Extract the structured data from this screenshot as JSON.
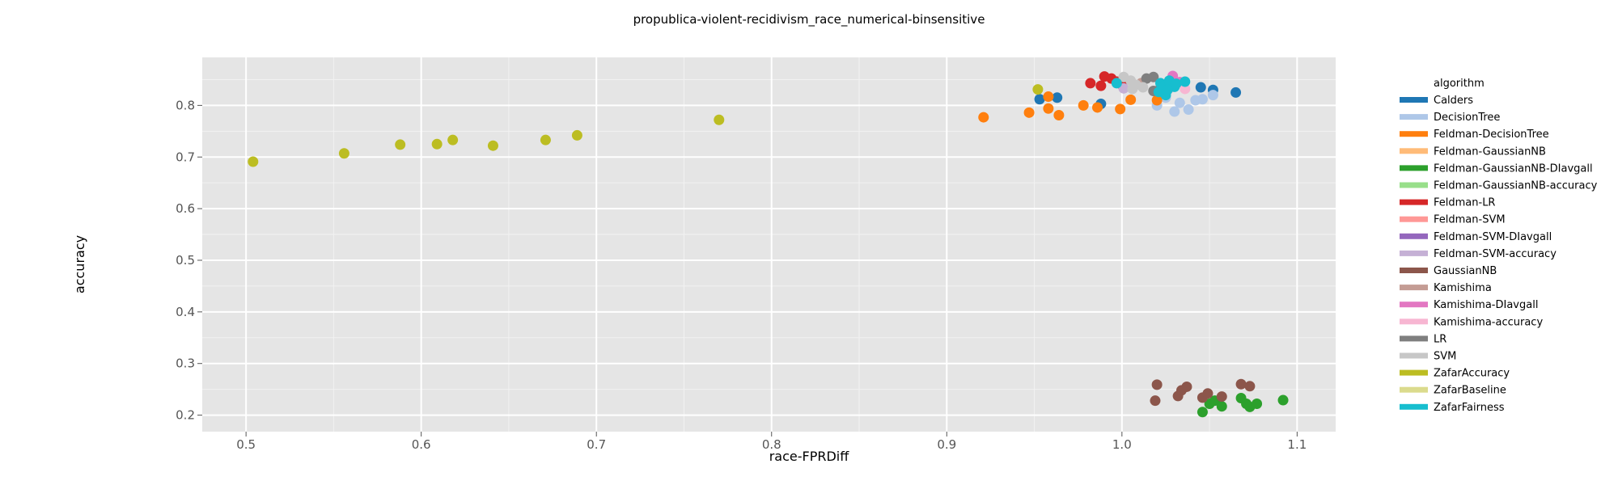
{
  "chart_data": {
    "type": "scatter",
    "title": "propublica-violent-recidivism_race_numerical-binsensitive",
    "xlabel": "race-FPRDiff",
    "ylabel": "accuracy",
    "xlim": [
      0.475,
      1.122
    ],
    "ylim": [
      0.168,
      0.893
    ],
    "xticks": [
      "0.5",
      "0.6",
      "0.7",
      "0.8",
      "0.9",
      "1.0",
      "1.1"
    ],
    "yticks": [
      "0.2",
      "0.3",
      "0.4",
      "0.5",
      "0.6",
      "0.7",
      "0.8"
    ],
    "grid": true,
    "legend_title": "algorithm",
    "legend_position": "right",
    "series": [
      {
        "name": "Calders",
        "color": "#1f77b4",
        "points": [
          [
            0.953,
            0.812
          ],
          [
            0.963,
            0.815
          ],
          [
            0.988,
            0.803
          ],
          [
            1.045,
            0.835
          ],
          [
            1.052,
            0.83
          ],
          [
            1.065,
            0.825
          ]
        ]
      },
      {
        "name": "DecisionTree",
        "color": "#aec7e8",
        "points": [
          [
            1.02,
            0.8
          ],
          [
            1.025,
            0.815
          ],
          [
            1.03,
            0.788
          ],
          [
            1.033,
            0.805
          ],
          [
            1.038,
            0.792
          ],
          [
            1.042,
            0.81
          ],
          [
            1.046,
            0.812
          ],
          [
            1.052,
            0.82
          ]
        ]
      },
      {
        "name": "Feldman-DecisionTree",
        "color": "#ff7f0e",
        "points": [
          [
            0.921,
            0.777
          ],
          [
            0.947,
            0.786
          ],
          [
            0.958,
            0.817
          ],
          [
            0.958,
            0.794
          ],
          [
            0.964,
            0.781
          ],
          [
            0.978,
            0.8
          ],
          [
            0.986,
            0.796
          ],
          [
            0.999,
            0.793
          ],
          [
            1.005,
            0.811
          ],
          [
            1.02,
            0.81
          ]
        ]
      },
      {
        "name": "Feldman-GaussianNB",
        "color": "#ffbb78",
        "points": []
      },
      {
        "name": "Feldman-GaussianNB-DIavgall",
        "color": "#2ca02c",
        "points": [
          [
            1.046,
            0.206
          ],
          [
            1.05,
            0.222
          ],
          [
            1.053,
            0.228
          ],
          [
            1.057,
            0.217
          ],
          [
            1.068,
            0.233
          ],
          [
            1.071,
            0.222
          ],
          [
            1.073,
            0.216
          ],
          [
            1.077,
            0.222
          ],
          [
            1.092,
            0.229
          ]
        ]
      },
      {
        "name": "Feldman-GaussianNB-accuracy",
        "color": "#98df8a",
        "points": []
      },
      {
        "name": "Feldman-LR",
        "color": "#d62728",
        "points": [
          [
            0.982,
            0.843
          ],
          [
            0.988,
            0.838
          ],
          [
            0.99,
            0.856
          ],
          [
            0.994,
            0.852
          ],
          [
            0.997,
            0.846
          ],
          [
            1.0,
            0.84
          ]
        ]
      },
      {
        "name": "Feldman-SVM",
        "color": "#ff9896",
        "points": []
      },
      {
        "name": "Feldman-SVM-DIavgall",
        "color": "#9467bd",
        "points": []
      },
      {
        "name": "Feldman-SVM-accuracy",
        "color": "#c5b0d5",
        "points": [
          [
            1.001,
            0.833
          ]
        ]
      },
      {
        "name": "GaussianNB",
        "color": "#8c564b",
        "points": [
          [
            1.019,
            0.228
          ],
          [
            1.02,
            0.259
          ],
          [
            1.032,
            0.237
          ],
          [
            1.034,
            0.248
          ],
          [
            1.037,
            0.255
          ],
          [
            1.046,
            0.234
          ],
          [
            1.049,
            0.242
          ],
          [
            1.057,
            0.236
          ],
          [
            1.068,
            0.26
          ],
          [
            1.073,
            0.256
          ]
        ]
      },
      {
        "name": "Kamishima",
        "color": "#c49c94",
        "points": [
          [
            1.011,
            0.843
          ]
        ]
      },
      {
        "name": "Kamishima-DIavgall",
        "color": "#e377c2",
        "points": [
          [
            1.029,
            0.857
          ],
          [
            1.033,
            0.845
          ]
        ]
      },
      {
        "name": "Kamishima-accuracy",
        "color": "#f7b6d2",
        "points": [
          [
            1.028,
            0.835
          ],
          [
            1.036,
            0.832
          ]
        ]
      },
      {
        "name": "LR",
        "color": "#7f7f7f",
        "points": [
          [
            1.014,
            0.852
          ],
          [
            1.018,
            0.855
          ],
          [
            1.018,
            0.828
          ],
          [
            1.022,
            0.833
          ]
        ]
      },
      {
        "name": "SVM",
        "color": "#c7c7c7",
        "points": [
          [
            1.001,
            0.855
          ],
          [
            1.005,
            0.848
          ],
          [
            1.008,
            0.84
          ],
          [
            1.012,
            0.835
          ],
          [
            1.006,
            0.832
          ]
        ]
      },
      {
        "name": "ZafarAccuracy",
        "color": "#bcbd22",
        "points": [
          [
            0.504,
            0.691
          ],
          [
            0.556,
            0.707
          ],
          [
            0.588,
            0.724
          ],
          [
            0.609,
            0.725
          ],
          [
            0.618,
            0.733
          ],
          [
            0.641,
            0.722
          ],
          [
            0.671,
            0.733
          ],
          [
            0.689,
            0.742
          ],
          [
            0.77,
            0.772
          ],
          [
            0.952,
            0.831
          ]
        ]
      },
      {
        "name": "ZafarBaseline",
        "color": "#dbdb8d",
        "points": []
      },
      {
        "name": "ZafarFairness",
        "color": "#17becf",
        "points": [
          [
            0.997,
            0.843
          ],
          [
            1.021,
            0.826
          ],
          [
            1.022,
            0.843
          ],
          [
            1.024,
            0.838
          ],
          [
            1.025,
            0.82
          ],
          [
            1.027,
            0.848
          ],
          [
            1.03,
            0.836
          ],
          [
            1.031,
            0.842
          ],
          [
            1.036,
            0.846
          ],
          [
            1.026,
            0.83
          ]
        ]
      }
    ]
  }
}
